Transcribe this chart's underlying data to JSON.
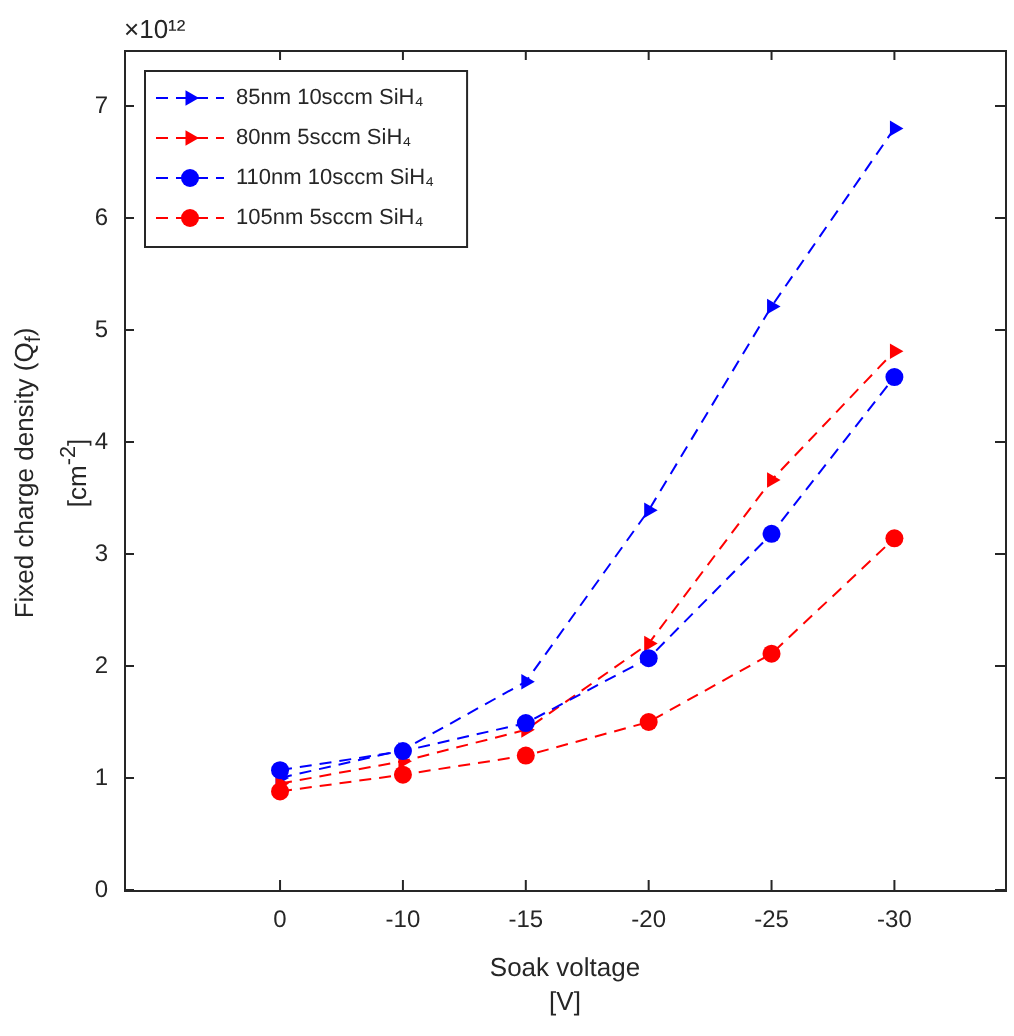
{
  "chart_data": {
    "type": "line",
    "xlabel": "Soak voltage\n[V]",
    "ylabel": "Fixed charge density (Q$_{f}$)\n[cm$^{-2}$]",
    "categories": [
      "0",
      "-10",
      "-15",
      "-20",
      "-25",
      "-30"
    ],
    "series": [
      {
        "name": "85nm 10sccm SiH₄",
        "color": "#0000ff",
        "marker": "triangle",
        "values": [
          1.0,
          1.25,
          1.86,
          3.39,
          5.21,
          6.8
        ]
      },
      {
        "name": "80nm 5sccm SiH₄",
        "color": "#ff0000",
        "marker": "triangle",
        "values": [
          0.95,
          1.15,
          1.43,
          2.2,
          3.66,
          4.81
        ]
      },
      {
        "name": "110nm 10sccm SiH₄",
        "color": "#0000ff",
        "marker": "circle",
        "values": [
          1.07,
          1.24,
          1.49,
          2.07,
          3.18,
          4.58
        ]
      },
      {
        "name": "105nm 5sccm SiH₄",
        "color": "#ff0000",
        "marker": "circle",
        "values": [
          0.88,
          1.03,
          1.2,
          1.5,
          2.11,
          3.14
        ]
      }
    ],
    "ylim": [
      0,
      7.5
    ],
    "yticks": [
      0,
      1,
      2,
      3,
      4,
      5,
      6,
      7
    ],
    "annotations": [
      "×10¹²"
    ],
    "grid": false,
    "legend": "top left",
    "line_style": "dashed"
  }
}
